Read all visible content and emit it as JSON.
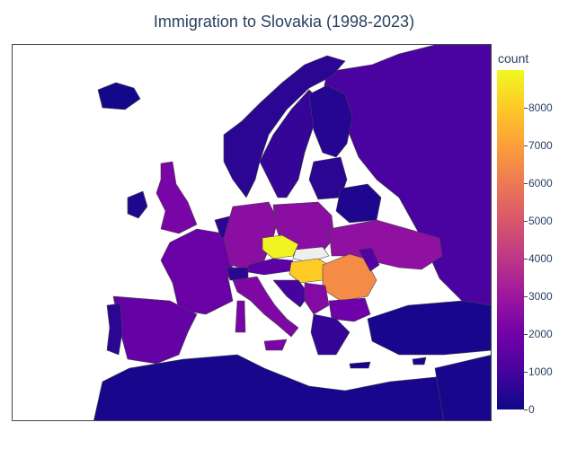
{
  "title": "Immigration to Slovakia (1998-2023)",
  "colorbar": {
    "title": "count",
    "min": 0,
    "max": 9000,
    "ticks": [
      "0",
      "1000",
      "2000",
      "3000",
      "4000",
      "5000",
      "6000",
      "7000",
      "8000"
    ],
    "tick_values": [
      0,
      1000,
      2000,
      3000,
      4000,
      5000,
      6000,
      7000,
      8000
    ],
    "colorscale": [
      "#0d0887",
      "#46039f",
      "#7201a8",
      "#9c179e",
      "#bd3786",
      "#d8576b",
      "#ed7953",
      "#fb9f3a",
      "#fdca26",
      "#f0f921"
    ]
  },
  "chart_data": {
    "type": "choropleth",
    "scope": "europe",
    "colorbar_title": "count",
    "color_range": [
      0,
      9000
    ],
    "no_data_color": "#eeeeee",
    "countries": [
      {
        "name": "Czechia",
        "value": 8900
      },
      {
        "name": "Hungary",
        "value": 8000
      },
      {
        "name": "Romania",
        "value": 6500
      },
      {
        "name": "Ukraine",
        "value": 2700
      },
      {
        "name": "Poland",
        "value": 2600
      },
      {
        "name": "Germany",
        "value": 2600
      },
      {
        "name": "Italy",
        "value": 2300
      },
      {
        "name": "Serbia",
        "value": 2400
      },
      {
        "name": "United Kingdom",
        "value": 2200
      },
      {
        "name": "France",
        "value": 1800
      },
      {
        "name": "Spain",
        "value": 1700
      },
      {
        "name": "Austria",
        "value": 1500
      },
      {
        "name": "Bulgaria",
        "value": 1900
      },
      {
        "name": "Russia",
        "value": 1100
      },
      {
        "name": "Sweden",
        "value": 700
      },
      {
        "name": "Norway",
        "value": 500
      },
      {
        "name": "Finland",
        "value": 400
      },
      {
        "name": "Portugal",
        "value": 500
      },
      {
        "name": "Ireland",
        "value": 300
      },
      {
        "name": "Croatia",
        "value": 1000
      },
      {
        "name": "Belarus",
        "value": 300
      },
      {
        "name": "Slovakia",
        "value": null
      }
    ]
  }
}
